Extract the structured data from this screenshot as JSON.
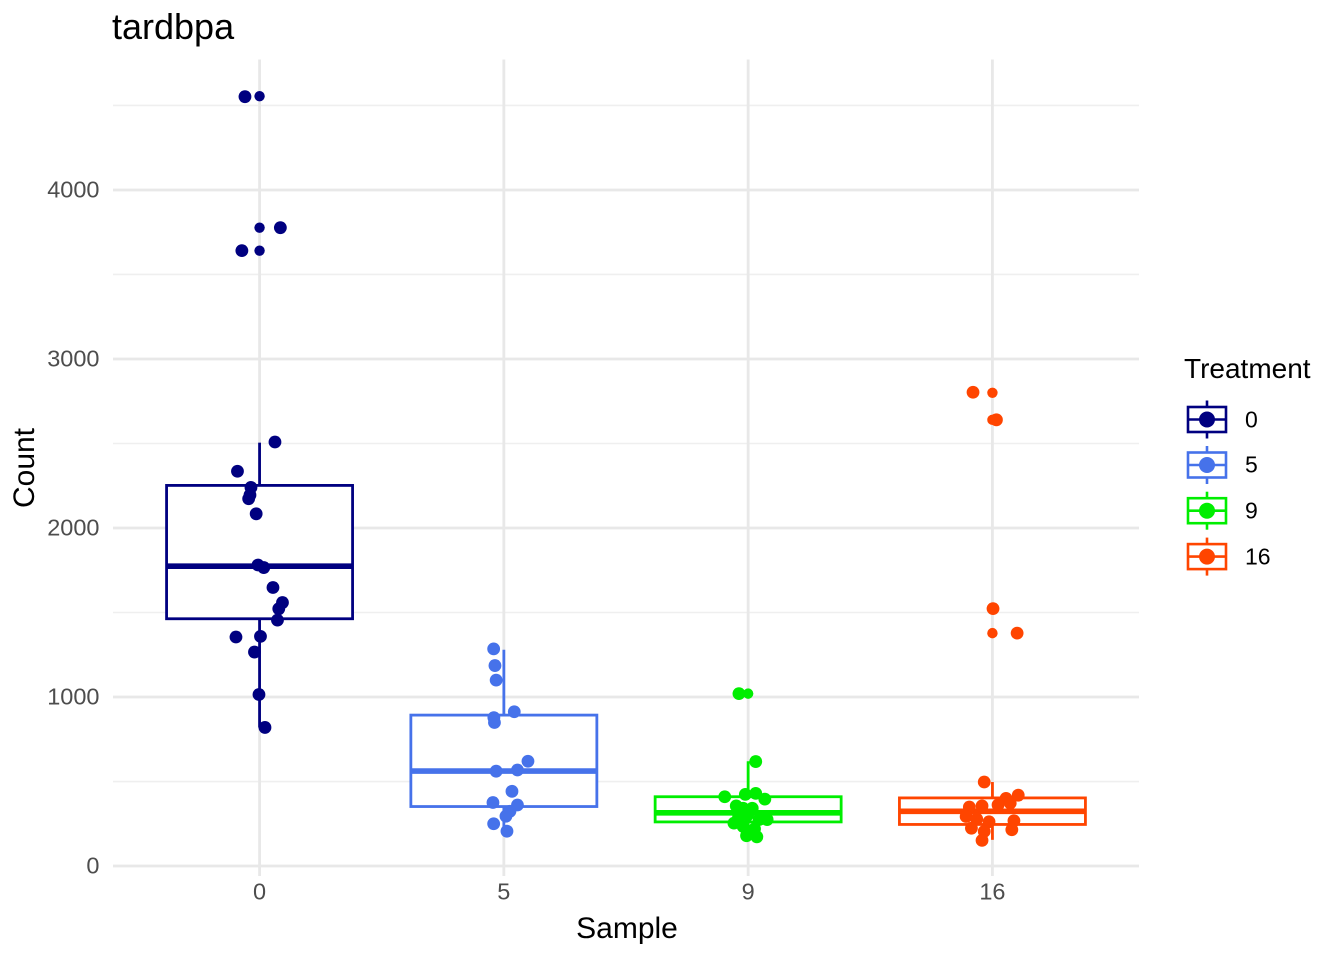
{
  "title": "tardbpa",
  "x_axis": {
    "label": "Sample",
    "tick_labels": [
      "0",
      "5",
      "9",
      "16"
    ]
  },
  "y_axis": {
    "label": "Count",
    "tick_labels": [
      "0",
      "1000",
      "2000",
      "3000",
      "4000"
    ]
  },
  "legend": {
    "title": "Treatment",
    "entries": [
      {
        "label": "0",
        "color": "#000080"
      },
      {
        "label": "5",
        "color": "#4672EA"
      },
      {
        "label": "9",
        "color": "#00EE00"
      },
      {
        "label": "16",
        "color": "#FF4500"
      }
    ]
  },
  "style": {
    "background": "#ffffff",
    "grid_major_color": "#e8e8e8",
    "grid_minor_color": "#efefef",
    "tick_text_color": "#4d4d4d",
    "title_text_color": "#000000"
  },
  "chart_data": {
    "type": "boxplot",
    "title": "tardbpa",
    "xlabel": "Sample",
    "ylabel": "Count",
    "categories": [
      "0",
      "5",
      "9",
      "16"
    ],
    "legend_title": "Treatment",
    "legend_position": "right",
    "grid": true,
    "ylim": [
      -59,
      4772
    ],
    "y_major_ticks": [
      0,
      1000,
      2000,
      3000,
      4000
    ],
    "y_minor_ticks": [
      500,
      1500,
      2500,
      3500,
      4500
    ],
    "series": [
      {
        "name": "0",
        "color": "#000080",
        "box": {
          "q1": 1463,
          "median": 1774,
          "q3": 2252,
          "whisker_low": 820,
          "whisker_high": 2505
        },
        "outliers": [
          4555,
          3777,
          3641
        ],
        "points": [
          [
            -14.6,
            4552
          ],
          [
            20.8,
            3777
          ],
          [
            -17.7,
            3641
          ],
          [
            15.4,
            2509
          ],
          [
            -22.1,
            2336
          ],
          [
            -8.6,
            2240
          ],
          [
            -9.6,
            2195
          ],
          [
            -10.9,
            2173
          ],
          [
            -3.4,
            2084
          ],
          [
            -1.6,
            1781
          ],
          [
            4.2,
            1766
          ],
          [
            13.4,
            1648
          ],
          [
            22.9,
            1559
          ],
          [
            19.2,
            1522
          ],
          [
            17.9,
            1455
          ],
          [
            -23.6,
            1355
          ],
          [
            0.9,
            1359
          ],
          [
            -5.1,
            1266
          ],
          [
            -0.6,
            1015
          ],
          [
            5.4,
            820
          ]
        ]
      },
      {
        "name": "5",
        "color": "#4672EA",
        "box": {
          "q1": 352,
          "median": 562,
          "q3": 893,
          "whisker_low": 195,
          "whisker_high": 1280
        },
        "outliers": [],
        "points": [
          [
            -10.2,
            1285
          ],
          [
            -8.9,
            1186
          ],
          [
            -7.7,
            1100
          ],
          [
            10.4,
            913
          ],
          [
            -10.0,
            878
          ],
          [
            -9.4,
            849
          ],
          [
            24.1,
            620
          ],
          [
            -7.7,
            561
          ],
          [
            13.6,
            568
          ],
          [
            8.1,
            442
          ],
          [
            -10.9,
            376
          ],
          [
            13.6,
            361
          ],
          [
            6.1,
            324
          ],
          [
            2.1,
            295
          ],
          [
            -10.2,
            250
          ],
          [
            3.1,
            206
          ]
        ]
      },
      {
        "name": "9",
        "color": "#00EE00",
        "box": {
          "q1": 261,
          "median": 315,
          "q3": 410,
          "whisker_low": 170,
          "whisker_high": 620
        },
        "outliers": [
          1020
        ],
        "points": [
          [
            -9.2,
            1020
          ],
          [
            7.6,
            618
          ],
          [
            -23.4,
            410
          ],
          [
            -2.8,
            424
          ],
          [
            7.6,
            430
          ],
          [
            16.7,
            396
          ],
          [
            -11.9,
            356
          ],
          [
            -5.0,
            342
          ],
          [
            4.1,
            342
          ],
          [
            -9.6,
            288
          ],
          [
            -0.5,
            302
          ],
          [
            11.0,
            275
          ],
          [
            19.0,
            275
          ],
          [
            -14.2,
            254
          ],
          [
            -5.0,
            234
          ],
          [
            6.4,
            220
          ],
          [
            -1.6,
            179
          ],
          [
            8.7,
            173
          ]
        ]
      },
      {
        "name": "16",
        "color": "#FF4500",
        "box": {
          "q1": 246,
          "median": 324,
          "q3": 403,
          "whisker_low": 155,
          "whisker_high": 497
        },
        "outliers": [
          2800,
          2640,
          1523,
          1378
        ],
        "points": [
          [
            -19.4,
            2803
          ],
          [
            4.0,
            2640
          ],
          [
            0.6,
            1523
          ],
          [
            24.7,
            1378
          ],
          [
            -8.2,
            497
          ],
          [
            13.6,
            400
          ],
          [
            25.8,
            419
          ],
          [
            -23.1,
            349
          ],
          [
            -10.4,
            356
          ],
          [
            5.6,
            362
          ],
          [
            17.8,
            372
          ],
          [
            -26.3,
            293
          ],
          [
            -15.7,
            278
          ],
          [
            -3.4,
            262
          ],
          [
            21.5,
            268
          ],
          [
            -21.0,
            224
          ],
          [
            -8.2,
            205
          ],
          [
            19.4,
            215
          ],
          [
            -10.4,
            152
          ]
        ]
      }
    ]
  }
}
